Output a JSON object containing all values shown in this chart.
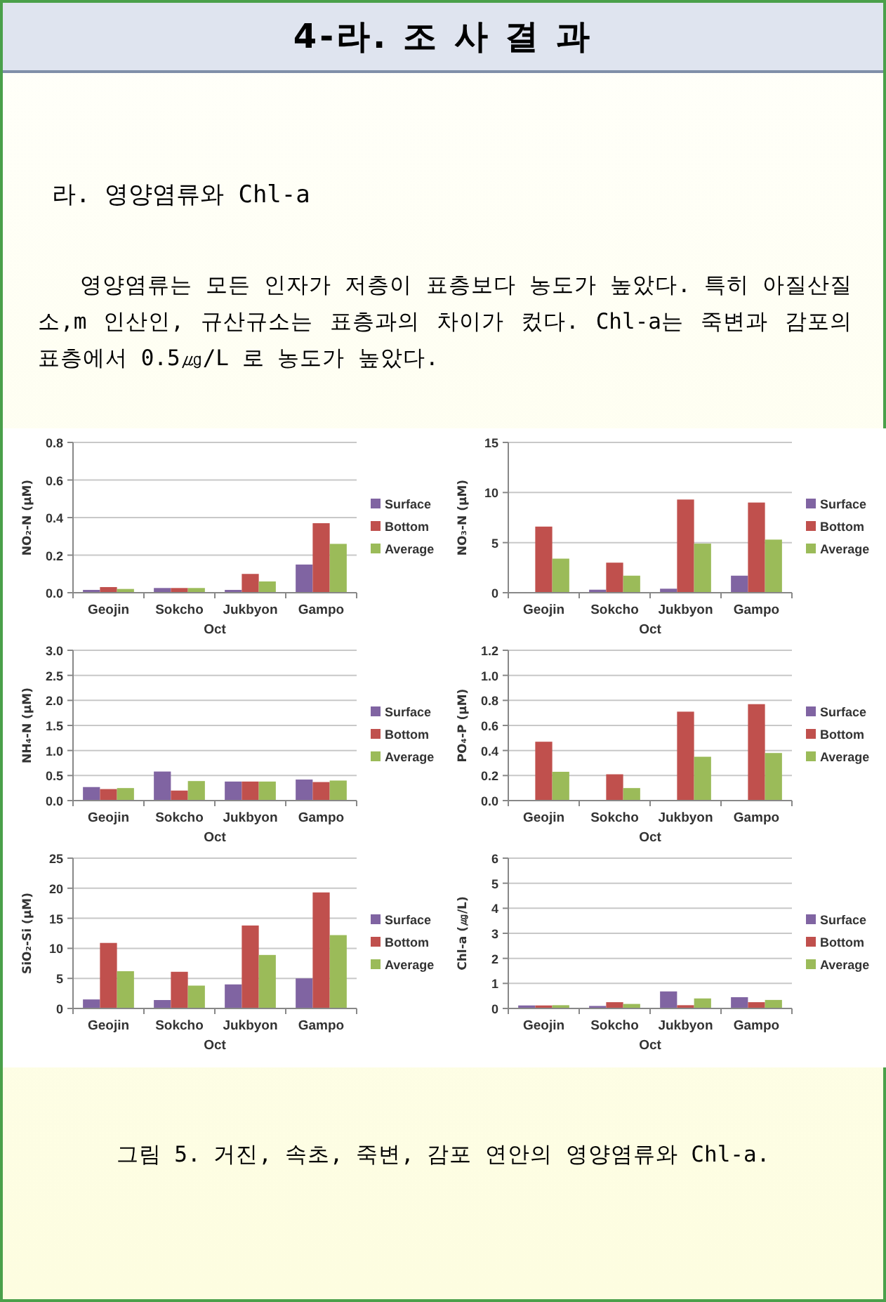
{
  "chart_data": [
    {
      "type": "other",
      "title": "4-라. 조 사 결 과",
      "subtitle": "라. 영양염류와 Chl-a",
      "annotations": [
        "영양염류는 모든 인자가 저층이 표층보다 농도가 높았다. 특히 아질산질소,m 인산인, 규산규소는 표층과의 차이가 컸다. Chl-a는 죽변과 감포의 표층에서 0.5㎍/L 로 농도가 높았다."
      ]
    },
    {
      "type": "bar",
      "categories": [
        "Geojin",
        "Sokcho",
        "Jukbyon",
        "Gampo"
      ],
      "xlabel": "Oct",
      "ylabel": "NO₂-N (µM)",
      "ylim": [
        0,
        0.8
      ],
      "yticks": [
        {
          "value": 0,
          "label": "0.0"
        },
        {
          "value": 0.2,
          "label": "0.2"
        },
        {
          "value": 0.4,
          "label": "0.4"
        },
        {
          "value": 0.6,
          "label": "0.6"
        },
        {
          "value": 0.8,
          "label": "0.8"
        }
      ],
      "grid": "y",
      "legend": "right",
      "series": [
        {
          "name": "Surface",
          "color": "#8064a2",
          "values": [
            0.015,
            0.025,
            0.015,
            0.15
          ]
        },
        {
          "name": "Bottom",
          "color": "#c0504d",
          "values": [
            0.03,
            0.025,
            0.1,
            0.37
          ]
        },
        {
          "name": "Average",
          "color": "#9bbb59",
          "values": [
            0.02,
            0.025,
            0.06,
            0.26
          ]
        }
      ]
    },
    {
      "type": "bar",
      "categories": [
        "Geojin",
        "Sokcho",
        "Jukbyon",
        "Gampo"
      ],
      "xlabel": "Oct",
      "ylabel": "NO₃-N (µM)",
      "ylim": [
        0,
        15
      ],
      "yticks": [
        0,
        5,
        10,
        15
      ],
      "grid": "y",
      "legend": "right",
      "series": [
        {
          "name": "Surface",
          "color": "#8064a2",
          "values": [
            null,
            0.3,
            0.4,
            1.7
          ]
        },
        {
          "name": "Bottom",
          "color": "#c0504d",
          "values": [
            6.6,
            3.0,
            9.3,
            9.0
          ]
        },
        {
          "name": "Average",
          "color": "#9bbb59",
          "values": [
            3.4,
            1.7,
            4.9,
            5.3
          ]
        }
      ]
    },
    {
      "type": "bar",
      "categories": [
        "Geojin",
        "Sokcho",
        "Jukbyon",
        "Gampo"
      ],
      "xlabel": "Oct",
      "ylabel": "NH₄-N (µM)",
      "ylim": [
        0,
        3
      ],
      "yticks": [
        {
          "value": 0,
          "label": "0.0"
        },
        {
          "value": 0.5,
          "label": "0.5"
        },
        {
          "value": 1,
          "label": "1.0"
        },
        {
          "value": 1.5,
          "label": "1.5"
        },
        {
          "value": 2,
          "label": "2.0"
        },
        {
          "value": 2.5,
          "label": "2.5"
        },
        {
          "value": 3,
          "label": "3.0"
        }
      ],
      "grid": "y",
      "legend": "right",
      "series": [
        {
          "name": "Surface",
          "color": "#8064a2",
          "values": [
            0.27,
            0.58,
            0.38,
            0.42
          ]
        },
        {
          "name": "Bottom",
          "color": "#c0504d",
          "values": [
            0.23,
            0.2,
            0.38,
            0.37
          ]
        },
        {
          "name": "Average",
          "color": "#9bbb59",
          "values": [
            0.25,
            0.39,
            0.38,
            0.4
          ]
        }
      ]
    },
    {
      "type": "bar",
      "categories": [
        "Geojin",
        "Sokcho",
        "Jukbyon",
        "Gampo"
      ],
      "xlabel": "Oct",
      "ylabel": "PO₄-P (µM)",
      "ylim": [
        0,
        1.2
      ],
      "yticks": [
        {
          "value": 0,
          "label": "0.0"
        },
        {
          "value": 0.2,
          "label": "0.2"
        },
        {
          "value": 0.4,
          "label": "0.4"
        },
        {
          "value": 0.6,
          "label": "0.6"
        },
        {
          "value": 0.8,
          "label": "0.8"
        },
        {
          "value": 1,
          "label": "1.0"
        },
        {
          "value": 1.2,
          "label": "1.2"
        }
      ],
      "grid": "y",
      "legend": "right",
      "series": [
        {
          "name": "Surface",
          "color": "#8064a2",
          "values": [
            0,
            0,
            0,
            0
          ]
        },
        {
          "name": "Bottom",
          "color": "#c0504d",
          "values": [
            0.47,
            0.21,
            0.71,
            0.77
          ]
        },
        {
          "name": "Average",
          "color": "#9bbb59",
          "values": [
            0.23,
            0.1,
            0.35,
            0.38
          ]
        }
      ]
    },
    {
      "type": "bar",
      "categories": [
        "Geojin",
        "Sokcho",
        "Jukbyon",
        "Gampo"
      ],
      "xlabel": "Oct",
      "ylabel": "SiO₂-Si (µM)",
      "ylim": [
        0,
        25
      ],
      "yticks": [
        0,
        5,
        10,
        15,
        20,
        25
      ],
      "grid": "y",
      "legend": "right",
      "series": [
        {
          "name": "Surface",
          "color": "#8064a2",
          "values": [
            1.5,
            1.4,
            4.0,
            5.0
          ]
        },
        {
          "name": "Bottom",
          "color": "#c0504d",
          "values": [
            10.9,
            6.1,
            13.8,
            19.3
          ]
        },
        {
          "name": "Average",
          "color": "#9bbb59",
          "values": [
            6.2,
            3.8,
            8.9,
            12.2
          ]
        }
      ]
    },
    {
      "type": "bar",
      "categories": [
        "Geojin",
        "Sokcho",
        "Jukbyon",
        "Gampo"
      ],
      "xlabel": "Oct",
      "ylabel": "Chl-a (㎍/L)",
      "ylim": [
        0,
        6
      ],
      "yticks": [
        0,
        1,
        2,
        3,
        4,
        5,
        6
      ],
      "grid": "y",
      "legend": "right",
      "series": [
        {
          "name": "Surface",
          "color": "#8064a2",
          "values": [
            0.12,
            0.1,
            0.68,
            0.45
          ]
        },
        {
          "name": "Bottom",
          "color": "#c0504d",
          "values": [
            0.12,
            0.25,
            0.13,
            0.25
          ]
        },
        {
          "name": "Average",
          "color": "#9bbb59",
          "values": [
            0.13,
            0.18,
            0.4,
            0.34
          ]
        }
      ]
    },
    {
      "type": "other",
      "annotations": [
        "그림 5. 거진, 속초, 죽변, 감포 연안의 영양염류와 Chl-a."
      ]
    }
  ]
}
